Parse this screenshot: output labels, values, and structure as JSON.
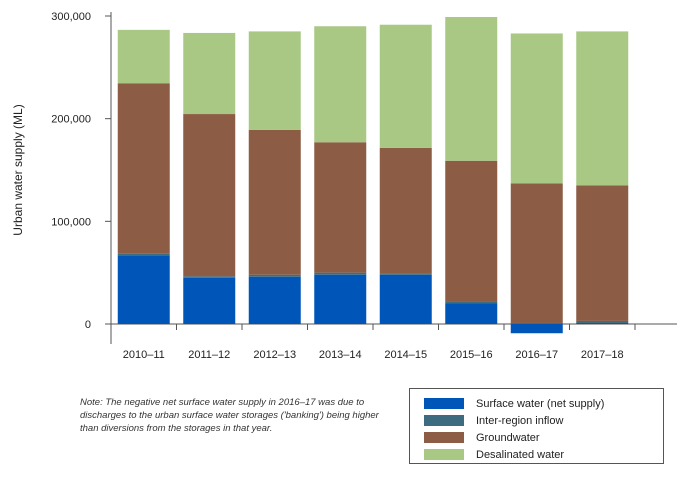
{
  "chart_data": {
    "type": "bar",
    "stacked": true,
    "ylabel": "Urban water supply (ML)",
    "ylim": [
      -20000,
      300000
    ],
    "yticks": [
      0,
      100000,
      200000,
      300000
    ],
    "ytick_labels": [
      "0",
      "100,000",
      "200,000",
      "300,000"
    ],
    "categories": [
      "2010–11",
      "2011–12",
      "2012–13",
      "2013–14",
      "2014–15",
      "2015–16",
      "2016–17",
      "2017–18"
    ],
    "series": [
      {
        "name": "Surface water (net supply)",
        "color": "#0055b8",
        "values": [
          67000,
          45000,
          46000,
          48000,
          48000,
          20000,
          -9000,
          1000
        ]
      },
      {
        "name": "Inter-region inflow",
        "color": "#3d6b80",
        "values": [
          1500,
          1500,
          2000,
          2000,
          1500,
          2000,
          1000,
          2000
        ]
      },
      {
        "name": "Groundwater",
        "color": "#8c5c45",
        "values": [
          166000,
          158000,
          141000,
          127000,
          122000,
          137000,
          136000,
          132000
        ]
      },
      {
        "name": "Desalinated water",
        "color": "#a8c884",
        "values": [
          52000,
          79000,
          96000,
          113000,
          120000,
          140000,
          146000,
          150000
        ]
      }
    ],
    "legend_position": "bottom-right",
    "grid": false
  },
  "note": "Note: The negative net surface water supply in 2016–17 was due to discharges to the urban surface water storages ('banking') being higher than diversions from the storages in that year."
}
